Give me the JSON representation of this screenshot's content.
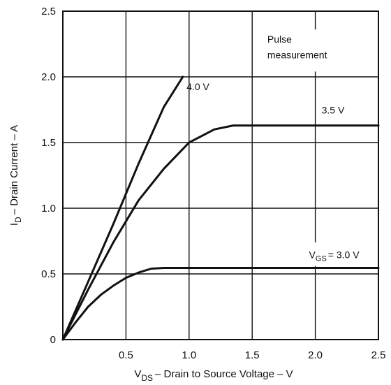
{
  "chart_data": {
    "type": "line",
    "title": "",
    "xlabel_main": "V",
    "xlabel_sub": "DS",
    "xlabel_rest": "– Drain to Source Voltage – V",
    "ylabel_main": "I",
    "ylabel_sub": "D",
    "ylabel_rest": "– Drain Current – A",
    "xlim": [
      0,
      2.5
    ],
    "ylim": [
      0,
      2.5
    ],
    "grid": true,
    "x_ticks": [
      "0.5",
      "1.0",
      "1.5",
      "2.0",
      "2.5"
    ],
    "x_tick_values": [
      0.5,
      1.0,
      1.5,
      2.0,
      2.5
    ],
    "y_ticks": [
      "0",
      "0.5",
      "1.0",
      "1.5",
      "2.0",
      "2.5"
    ],
    "y_tick_values": [
      0,
      0.5,
      1.0,
      1.5,
      2.0,
      2.5
    ],
    "annotation_line1": "Pulse",
    "annotation_line2": "measurement",
    "series": [
      {
        "name": "4.0 V",
        "x": [
          0,
          0.2,
          0.4,
          0.6,
          0.8,
          0.95
        ],
        "y": [
          0,
          0.44,
          0.88,
          1.34,
          1.77,
          2.0
        ]
      },
      {
        "name": "3.5 V",
        "x": [
          0,
          0.2,
          0.4,
          0.6,
          0.8,
          1.0,
          1.2,
          1.35,
          1.6,
          2.0,
          2.5
        ],
        "y": [
          0,
          0.38,
          0.74,
          1.06,
          1.3,
          1.5,
          1.6,
          1.63,
          1.63,
          1.63,
          1.63
        ]
      },
      {
        "name_main": "V",
        "name_sub": "GS",
        "name_rest": "= 3.0 V",
        "x": [
          0,
          0.1,
          0.2,
          0.3,
          0.4,
          0.5,
          0.6,
          0.7,
          0.8,
          1.0,
          1.5,
          2.0,
          2.5
        ],
        "y": [
          0,
          0.13,
          0.25,
          0.34,
          0.41,
          0.47,
          0.51,
          0.54,
          0.545,
          0.545,
          0.545,
          0.545,
          0.545
        ]
      }
    ]
  }
}
